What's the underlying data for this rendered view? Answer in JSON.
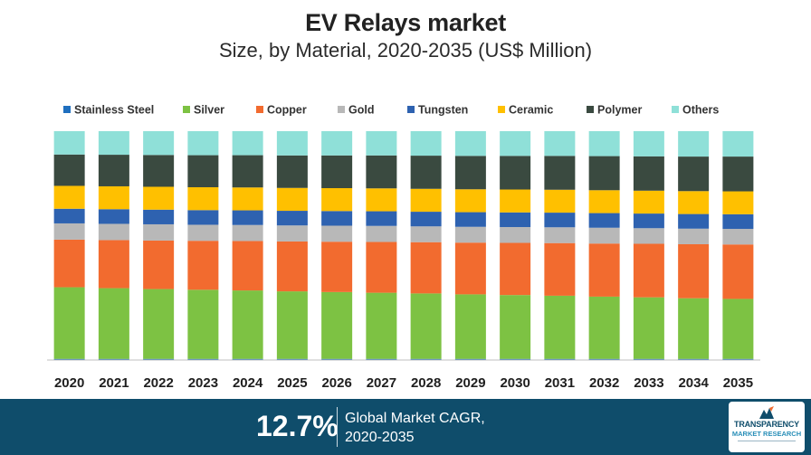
{
  "title": "EV Relays market",
  "subtitle": "Size, by Material, 2020-2035 (US$ Million)",
  "chart_data": {
    "type": "bar",
    "stacked": true,
    "normalized": true,
    "title": "EV Relays market",
    "subtitle": "Size, by Material, 2020-2035 (US$ Million)",
    "xlabel": "",
    "ylabel": "",
    "ylim": [
      0,
      100
    ],
    "grid": false,
    "legend_position": "top",
    "categories": [
      "2020",
      "2021",
      "2022",
      "2023",
      "2024",
      "2025",
      "2026",
      "2027",
      "2028",
      "2029",
      "2030",
      "2031",
      "2032",
      "2033",
      "2034",
      "2035"
    ],
    "series": [
      {
        "name": "Stainless Steel",
        "color": "#1f6fbf",
        "values": [
          0.5,
          0.5,
          0.5,
          0.5,
          0.5,
          0.5,
          0.5,
          0.5,
          0.5,
          0.5,
          0.5,
          0.5,
          0.5,
          0.5,
          0.5,
          0.5
        ]
      },
      {
        "name": "Silver",
        "color": "#7dc243",
        "values": [
          31.3,
          30.9,
          30.5,
          30.2,
          29.9,
          29.5,
          29.2,
          28.9,
          28.6,
          28.2,
          27.9,
          27.6,
          27.2,
          26.9,
          26.5,
          26.2
        ]
      },
      {
        "name": "Copper",
        "color": "#f26b2f",
        "values": [
          20.8,
          21.0,
          21.2,
          21.4,
          21.6,
          21.8,
          22.0,
          22.2,
          22.4,
          22.6,
          22.8,
          23.0,
          23.2,
          23.4,
          23.6,
          23.8
        ]
      },
      {
        "name": "Gold",
        "color": "#b8b8b8",
        "values": [
          7.1,
          7.1,
          7.1,
          7.0,
          7.0,
          7.0,
          7.0,
          7.0,
          6.9,
          6.9,
          6.9,
          6.9,
          6.9,
          6.8,
          6.8,
          6.8
        ]
      },
      {
        "name": "Tungsten",
        "color": "#2e62b0",
        "values": [
          6.4,
          6.4,
          6.4,
          6.4,
          6.4,
          6.4,
          6.4,
          6.4,
          6.4,
          6.4,
          6.4,
          6.4,
          6.4,
          6.4,
          6.4,
          6.4
        ]
      },
      {
        "name": "Ceramic",
        "color": "#ffc000",
        "values": [
          10.0,
          10.0,
          10.0,
          10.0,
          10.0,
          10.0,
          10.0,
          10.0,
          10.0,
          10.0,
          10.0,
          10.0,
          10.0,
          10.0,
          10.0,
          10.0
        ]
      },
      {
        "name": "Polymer",
        "color": "#3a4a40",
        "values": [
          13.7,
          13.8,
          13.9,
          14.0,
          14.1,
          14.2,
          14.3,
          14.4,
          14.5,
          14.6,
          14.7,
          14.8,
          14.9,
          15.0,
          15.1,
          15.2
        ]
      },
      {
        "name": "Others",
        "color": "#8fe0d8",
        "values": [
          10.2,
          10.3,
          10.4,
          10.5,
          10.5,
          10.6,
          10.6,
          10.6,
          10.7,
          10.8,
          10.8,
          10.8,
          10.9,
          11.0,
          11.1,
          11.1
        ]
      }
    ]
  },
  "footer": {
    "cagr_value": "12.7%",
    "cagr_label": "Global Market CAGR,",
    "cagr_period": "2020-2035"
  },
  "logo": {
    "line1": "TRANSPARENCY",
    "line2": "MARKET RESEARCH"
  },
  "colors": {
    "footer_bg": "#0f4d6b",
    "axis": "#bfbfbf"
  }
}
